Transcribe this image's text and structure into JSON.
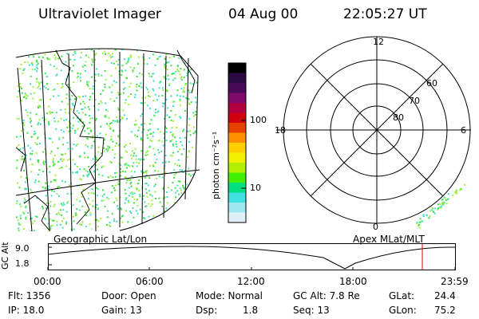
{
  "header": {
    "instrument": "Ultraviolet Imager",
    "date": "04 Aug 00",
    "time": "22:05:27 UT"
  },
  "colorbar": {
    "unit_label": "photon cm⁻²s⁻¹",
    "ticks": [
      "100",
      "10"
    ],
    "colors": [
      "#000000",
      "#2a0a40",
      "#4a0a5a",
      "#800a6a",
      "#b00040",
      "#d00010",
      "#e84000",
      "#ff9000",
      "#ffd000",
      "#f0f000",
      "#b0f000",
      "#40f000",
      "#00e080",
      "#40e0e0",
      "#a0e8f0",
      "#e0f0f8"
    ]
  },
  "left_panel": {
    "caption": "Geographic Lat/Lon",
    "dot_colors": [
      "#40e040",
      "#a0f040",
      "#40e0c0"
    ]
  },
  "right_panel": {
    "caption": "Apex MLat/MLT",
    "labels": {
      "mlt_12": "12",
      "mlt_18": "18",
      "mlt_6": "6",
      "mlt_0": "0",
      "mlat_60": "60",
      "mlat_70": "70",
      "mlat_80": "80"
    }
  },
  "altitude_plot": {
    "ylabel": "GC Alt",
    "yticks": [
      "9.0",
      "1.8"
    ],
    "xticks": [
      "00:00",
      "06:00",
      "12:00",
      "18:00",
      "23:59"
    ],
    "current_time_marker_color": "#e00000"
  },
  "info": {
    "flt": "Flt: 1356",
    "ip": "IP: 18.0",
    "door": "Door: Open",
    "gain": "Gain: 13",
    "mode": "Mode: Normal",
    "dsp_label": "Dsp:",
    "dsp_value": "1.8",
    "gc_alt": "GC Alt: 7.8 Re",
    "seq": "Seq: 13",
    "glat_label": "GLat:",
    "glat_value": "24.4",
    "glon_label": "GLon:",
    "glon_value": "75.2"
  }
}
